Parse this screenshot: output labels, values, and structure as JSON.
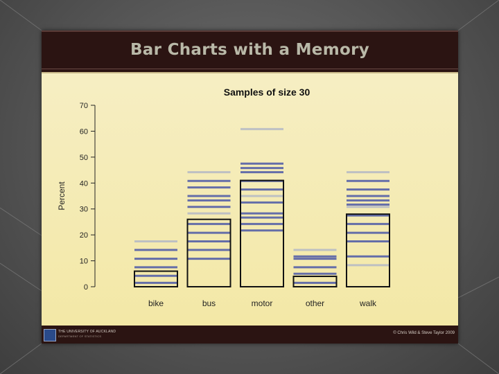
{
  "slide": {
    "title": "Bar Charts with a Memory",
    "footer_left_line1": "THE UNIVERSITY OF AUCKLAND",
    "footer_left_line2": "DEPARTMENT OF STATISTICS",
    "footer_right": "© Chris Wild & Steve Taylor 2009"
  },
  "chart_data": {
    "type": "bar",
    "title": "Samples of size 30",
    "xlabel": "",
    "ylabel": "Percent",
    "ylim": [
      0,
      70
    ],
    "yticks": [
      0,
      10,
      20,
      30,
      40,
      50,
      60,
      70
    ],
    "categories": [
      "bike",
      "bus",
      "motor",
      "other",
      "walk"
    ],
    "values": [
      6,
      26,
      41,
      4,
      28
    ],
    "memory_lines": [
      [
        17.5,
        14.2,
        10.8,
        7.5,
        4.2,
        1.5
      ],
      [
        44.2,
        40.8,
        38.3,
        35,
        33.3,
        30.8,
        28.3,
        24.2,
        20.8,
        17.5,
        14.2,
        10.8
      ],
      [
        60.8,
        47.5,
        45.8,
        44.2,
        40.8,
        37.5,
        35,
        32.5,
        28.3,
        26.7,
        24.2,
        21.7
      ],
      [
        14.2,
        11.7,
        10.8,
        7.5,
        5,
        1.5
      ],
      [
        44.2,
        40.8,
        37.5,
        35,
        33.3,
        31.7,
        30.8,
        27.5,
        24.2,
        20.8,
        17.5,
        11.7,
        8.3
      ]
    ],
    "colors": {
      "bar_outline": "#111111",
      "memory_dark": "#5560a8",
      "memory_light": "#b4b9c6"
    }
  }
}
